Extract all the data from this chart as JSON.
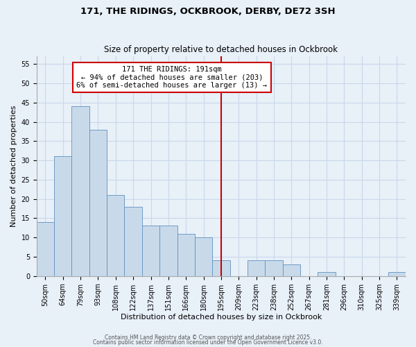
{
  "title": "171, THE RIDINGS, OCKBROOK, DERBY, DE72 3SH",
  "subtitle": "Size of property relative to detached houses in Ockbrook",
  "xlabel": "Distribution of detached houses by size in Ockbrook",
  "ylabel": "Number of detached properties",
  "bin_labels": [
    "50sqm",
    "64sqm",
    "79sqm",
    "93sqm",
    "108sqm",
    "122sqm",
    "137sqm",
    "151sqm",
    "166sqm",
    "180sqm",
    "195sqm",
    "209sqm",
    "223sqm",
    "238sqm",
    "252sqm",
    "267sqm",
    "281sqm",
    "296sqm",
    "310sqm",
    "325sqm",
    "339sqm"
  ],
  "bar_values": [
    14,
    31,
    44,
    38,
    21,
    18,
    13,
    13,
    11,
    10,
    4,
    0,
    4,
    4,
    3,
    0,
    1,
    0,
    0,
    0,
    1
  ],
  "bar_color": "#c8daea",
  "bar_edge_color": "#6090c0",
  "vline_x_index": 10,
  "vline_color": "#cc0000",
  "annotation_text": "171 THE RIDINGS: 191sqm\n← 94% of detached houses are smaller (203)\n6% of semi-detached houses are larger (13) →",
  "annotation_box_color": "#ffffff",
  "annotation_box_edge": "#cc0000",
  "ylim": [
    0,
    57
  ],
  "yticks": [
    0,
    5,
    10,
    15,
    20,
    25,
    30,
    35,
    40,
    45,
    50,
    55
  ],
  "grid_color": "#c8d8ea",
  "background_color": "#e8f0f8",
  "footer1": "Contains HM Land Registry data © Crown copyright and database right 2025.",
  "footer2": "Contains public sector information licensed under the Open Government Licence v3.0.",
  "title_fontsize": 9.5,
  "subtitle_fontsize": 8.5,
  "axis_label_fontsize": 8.0,
  "tick_fontsize": 7.0,
  "annot_fontsize": 7.5,
  "footer_fontsize": 5.5
}
